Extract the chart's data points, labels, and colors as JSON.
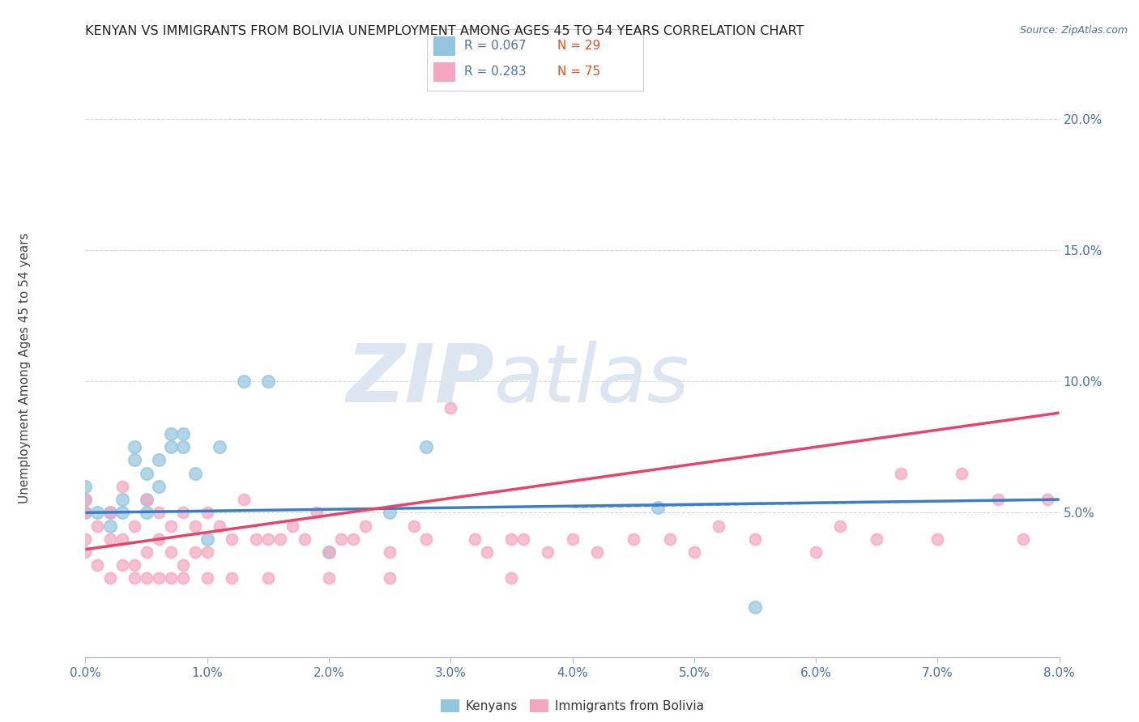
{
  "title": "KENYAN VS IMMIGRANTS FROM BOLIVIA UNEMPLOYMENT AMONG AGES 45 TO 54 YEARS CORRELATION CHART",
  "source": "Source: ZipAtlas.com",
  "ylabel": "Unemployment Among Ages 45 to 54 years",
  "x_tick_labels": [
    "0.0%",
    "1.0%",
    "2.0%",
    "3.0%",
    "4.0%",
    "5.0%",
    "6.0%",
    "7.0%",
    "8.0%"
  ],
  "y_tick_labels": [
    "5.0%",
    "10.0%",
    "15.0%",
    "20.0%"
  ],
  "xlim": [
    0.0,
    0.08
  ],
  "ylim": [
    -0.005,
    0.215
  ],
  "legend_r1": "R = 0.067",
  "legend_n1": "N = 29",
  "legend_r2": "R = 0.283",
  "legend_n2": "N = 75",
  "legend_label1": "Kenyans",
  "legend_label2": "Immigrants from Bolivia",
  "color_blue": "#92c5de",
  "color_pink": "#f4a6c0",
  "color_blue_line": "#3a7dc9",
  "color_pink_line": "#e8436a",
  "watermark_zip": "ZIP",
  "watermark_atlas": "atlas",
  "watermark_color": "#dde5f0",
  "blue_scatter_x": [
    0.0,
    0.0,
    0.0,
    0.001,
    0.002,
    0.002,
    0.003,
    0.003,
    0.004,
    0.004,
    0.005,
    0.005,
    0.005,
    0.006,
    0.006,
    0.007,
    0.007,
    0.008,
    0.008,
    0.009,
    0.01,
    0.011,
    0.013,
    0.015,
    0.02,
    0.025,
    0.028,
    0.047,
    0.055
  ],
  "blue_scatter_y": [
    0.05,
    0.055,
    0.06,
    0.05,
    0.045,
    0.05,
    0.05,
    0.055,
    0.07,
    0.075,
    0.05,
    0.055,
    0.065,
    0.06,
    0.07,
    0.075,
    0.08,
    0.075,
    0.08,
    0.065,
    0.04,
    0.075,
    0.1,
    0.1,
    0.035,
    0.05,
    0.075,
    0.052,
    0.014
  ],
  "pink_scatter_x": [
    0.0,
    0.0,
    0.0,
    0.0,
    0.001,
    0.001,
    0.002,
    0.002,
    0.002,
    0.003,
    0.003,
    0.003,
    0.004,
    0.004,
    0.004,
    0.005,
    0.005,
    0.005,
    0.006,
    0.006,
    0.006,
    0.007,
    0.007,
    0.007,
    0.008,
    0.008,
    0.008,
    0.009,
    0.009,
    0.01,
    0.01,
    0.01,
    0.011,
    0.012,
    0.012,
    0.013,
    0.014,
    0.015,
    0.015,
    0.016,
    0.017,
    0.018,
    0.019,
    0.02,
    0.02,
    0.021,
    0.022,
    0.023,
    0.025,
    0.025,
    0.027,
    0.028,
    0.03,
    0.032,
    0.033,
    0.035,
    0.035,
    0.036,
    0.038,
    0.04,
    0.042,
    0.045,
    0.048,
    0.05,
    0.052,
    0.055,
    0.06,
    0.062,
    0.065,
    0.067,
    0.07,
    0.072,
    0.075,
    0.077,
    0.079
  ],
  "pink_scatter_y": [
    0.05,
    0.055,
    0.04,
    0.035,
    0.045,
    0.03,
    0.05,
    0.04,
    0.025,
    0.04,
    0.06,
    0.03,
    0.03,
    0.045,
    0.025,
    0.035,
    0.055,
    0.025,
    0.04,
    0.05,
    0.025,
    0.035,
    0.045,
    0.025,
    0.03,
    0.05,
    0.025,
    0.035,
    0.045,
    0.035,
    0.05,
    0.025,
    0.045,
    0.04,
    0.025,
    0.055,
    0.04,
    0.04,
    0.025,
    0.04,
    0.045,
    0.04,
    0.05,
    0.035,
    0.025,
    0.04,
    0.04,
    0.045,
    0.035,
    0.025,
    0.045,
    0.04,
    0.09,
    0.04,
    0.035,
    0.04,
    0.025,
    0.04,
    0.035,
    0.04,
    0.035,
    0.04,
    0.04,
    0.035,
    0.045,
    0.04,
    0.035,
    0.045,
    0.04,
    0.065,
    0.04,
    0.065,
    0.055,
    0.04,
    0.055
  ],
  "blue_trend_x": [
    0.0,
    0.08
  ],
  "blue_trend_y": [
    0.05,
    0.055
  ],
  "pink_trend_x": [
    0.0,
    0.08
  ],
  "pink_trend_y": [
    0.036,
    0.088
  ],
  "background_color": "#ffffff",
  "grid_color": "#cccccc",
  "title_fontsize": 11.5,
  "axis_label_fontsize": 11,
  "source_fontsize": 9
}
